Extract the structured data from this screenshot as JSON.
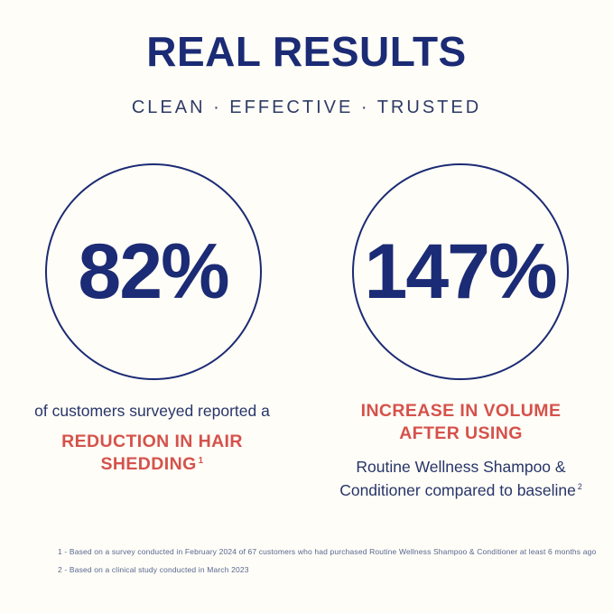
{
  "theme": {
    "background": "#FFFDF7",
    "navy": "#1B2B75",
    "navy_soft": "#2E3B66",
    "body_navy": "#27356A",
    "red": "#D5524B",
    "footnote_color": "#566790"
  },
  "header": {
    "title": "REAL RESULTS",
    "subtitle": "CLEAN · EFFECTIVE · TRUSTED"
  },
  "stats": [
    {
      "value": "82%",
      "caption": "of customers surveyed reported a",
      "highlight_line1": "REDUCTION IN HAIR",
      "highlight_line2": "SHEDDING",
      "footnote_ref": "1"
    },
    {
      "value": "147%",
      "highlight_line1": "INCREASE IN VOLUME",
      "highlight_line2": "AFTER USING",
      "caption_line1": "Routine Wellness Shampoo &",
      "caption_line2": "Conditioner compared to baseline",
      "footnote_ref": "2"
    }
  ],
  "footnotes": [
    "1 - Based on a survey conducted in February 2024 of 67 customers who had purchased Routine Wellness Shampoo & Conditioner at least 6 months ago",
    "2 - Based on a clinical study conducted in March 2023"
  ],
  "chart_data": {
    "type": "table",
    "title": "REAL RESULTS",
    "subtitle": "CLEAN · EFFECTIVE · TRUSTED",
    "categories": [
      "Customers surveyed reporting a reduction in hair shedding",
      "Increase in volume after using Routine Wellness Shampoo & Conditioner compared to baseline"
    ],
    "values": [
      82,
      147
    ],
    "unit": "%",
    "notes": [
      "Based on a survey conducted in February 2024 of 67 customers who had purchased Routine Wellness Shampoo & Conditioner at least 6 months ago",
      "Based on a clinical study conducted in March 2023"
    ]
  }
}
